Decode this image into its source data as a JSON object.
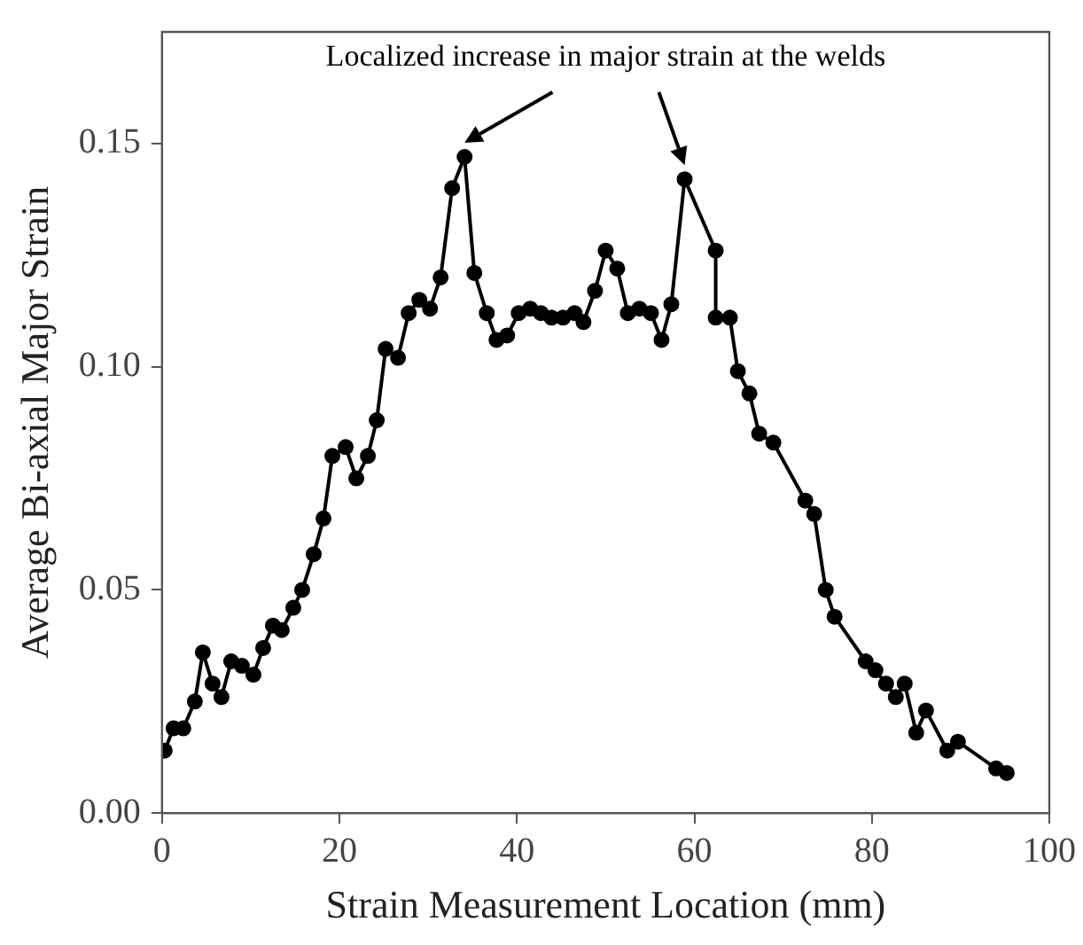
{
  "chart_data": {
    "type": "line",
    "xlabel": "Strain Measurement Location (mm)",
    "ylabel": "Average Bi-axial Major Strain",
    "annotations": [
      "Localized increase in major strain at the welds"
    ],
    "x": [
      0.3,
      1.3,
      2.4,
      3.7,
      4.6,
      5.7,
      6.7,
      7.8,
      9.0,
      10.3,
      11.4,
      12.5,
      13.5,
      14.8,
      15.8,
      17.1,
      18.2,
      19.2,
      20.7,
      21.9,
      23.2,
      24.2,
      25.2,
      26.6,
      27.8,
      29.0,
      30.2,
      31.4,
      32.7,
      34.1,
      35.2,
      36.6,
      37.7,
      38.9,
      40.2,
      41.5,
      42.7,
      43.9,
      45.2,
      46.5,
      47.5,
      48.8,
      50.0,
      51.3,
      52.5,
      53.8,
      55.1,
      56.3,
      57.4,
      58.9,
      62.4,
      62.4,
      64.0,
      64.9,
      66.2,
      67.3,
      68.9,
      72.5,
      73.5,
      74.8,
      75.8,
      79.3,
      80.4,
      81.6,
      82.7,
      83.7,
      85.0,
      86.1,
      88.5,
      89.7,
      94.0,
      95.2
    ],
    "series": [
      {
        "color": "#000000",
        "values": [
          0.014,
          0.019,
          0.019,
          0.025,
          0.036,
          0.029,
          0.026,
          0.034,
          0.033,
          0.031,
          0.037,
          0.042,
          0.041,
          0.046,
          0.05,
          0.058,
          0.066,
          0.08,
          0.082,
          0.075,
          0.08,
          0.088,
          0.104,
          0.102,
          0.112,
          0.115,
          0.113,
          0.12,
          0.14,
          0.147,
          0.121,
          0.112,
          0.106,
          0.107,
          0.112,
          0.113,
          0.112,
          0.111,
          0.111,
          0.112,
          0.11,
          0.117,
          0.126,
          0.122,
          0.112,
          0.113,
          0.112,
          0.106,
          0.114,
          0.142,
          0.126,
          0.111,
          0.111,
          0.099,
          0.094,
          0.085,
          0.083,
          0.07,
          0.067,
          0.05,
          0.044,
          0.034,
          0.032,
          0.029,
          0.026,
          0.029,
          0.018,
          0.023,
          0.014,
          0.016,
          0.01,
          0.009
        ]
      }
    ],
    "xlim": [
      0,
      100
    ],
    "xticks": [
      0,
      20,
      40,
      60,
      80,
      100
    ],
    "ylim": [
      0,
      0.175
    ],
    "yticks": [
      {
        "value": 0,
        "label": "0.00"
      },
      {
        "value": 0.05,
        "label": "0.05"
      },
      {
        "value": 0.1,
        "label": "0.10"
      },
      {
        "value": 0.15,
        "label": "0.15"
      }
    ],
    "marker": "circle",
    "line_style": "solid",
    "legend": false
  }
}
